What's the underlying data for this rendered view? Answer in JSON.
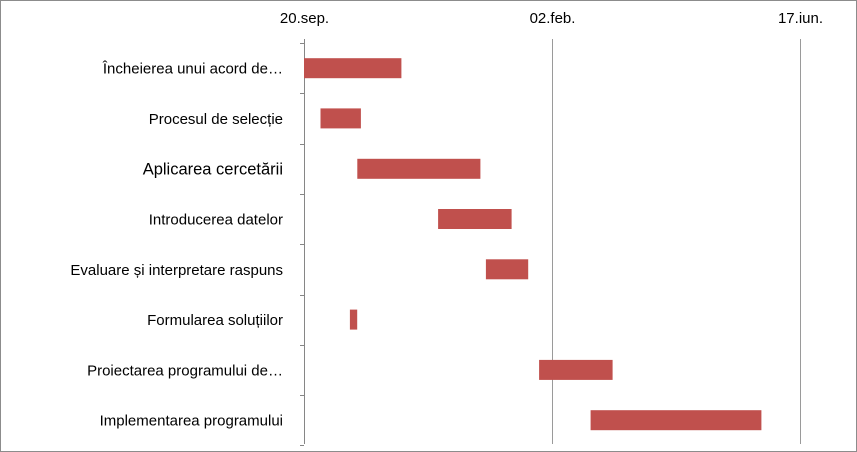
{
  "chart_data": {
    "type": "bar",
    "orientation": "horizontal",
    "subtype": "gantt",
    "title": "",
    "xlabel": "",
    "ylabel": "",
    "x_axis_position": "top",
    "grid": "vertical",
    "legend": "none",
    "bar_color": "#c0504d",
    "x_ticks": [
      {
        "label": "20.sep.",
        "value": 0
      },
      {
        "label": "02.feb.",
        "value": 135
      },
      {
        "label": "17.iun.",
        "value": 270
      }
    ],
    "xlim": [
      0,
      270
    ],
    "x_units": "days",
    "categories": [
      "Încheierea unui acord de…",
      "Procesul de selecție",
      "Aplicarea cercetării",
      "Introducerea datelor",
      "Evaluare și interpretare raspuns",
      "Formularea soluțiilor",
      "Proiectarea programului de…",
      "Implementarea programului"
    ],
    "tasks": [
      {
        "start": 0,
        "end": 53
      },
      {
        "start": 9,
        "end": 31
      },
      {
        "start": 29,
        "end": 96
      },
      {
        "start": 73,
        "end": 113
      },
      {
        "start": 99,
        "end": 122
      },
      {
        "start": 25,
        "end": 29
      },
      {
        "start": 128,
        "end": 168
      },
      {
        "start": 156,
        "end": 249
      }
    ]
  }
}
